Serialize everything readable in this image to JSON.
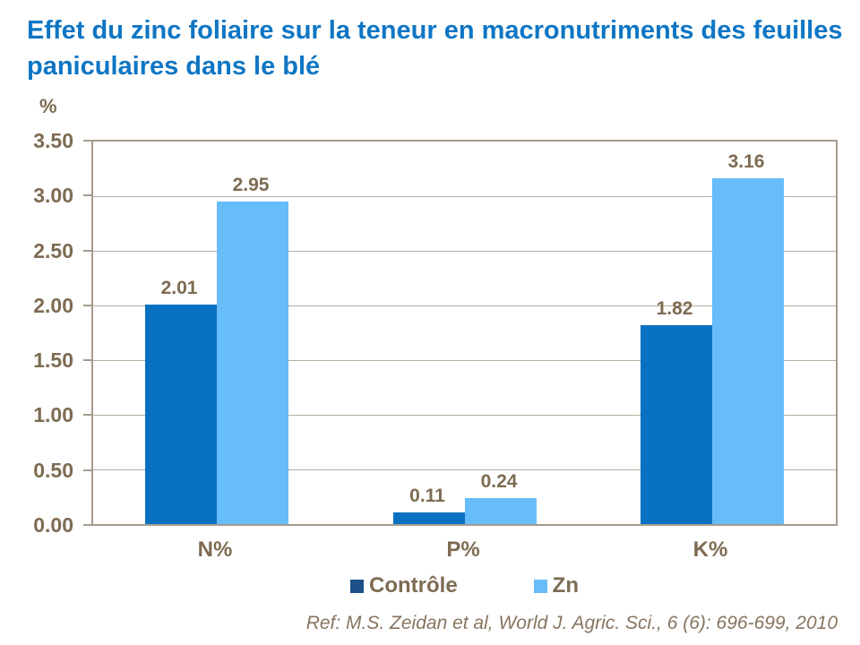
{
  "chart_data": {
    "type": "bar",
    "title": "Effet du zinc foliaire sur la teneur en macronutriments des feuilles paniculaires dans le blé",
    "ylabel": "%",
    "xlabel": "",
    "categories": [
      "N%",
      "P%",
      "K%"
    ],
    "series": [
      {
        "name": "Contrôle",
        "color": "#0971C1",
        "legend_color": "#1E5089",
        "values": [
          2.01,
          0.11,
          1.82
        ]
      },
      {
        "name": "Zn",
        "color": "#67BCFA",
        "legend_color": "#67BCFA",
        "values": [
          2.95,
          0.24,
          3.16
        ]
      }
    ],
    "data_labels": [
      [
        "2.01",
        "0.11",
        "1.82"
      ],
      [
        "2.95",
        "0.24",
        "3.16"
      ]
    ],
    "ylim": [
      0,
      3.5
    ],
    "ytick_step": 0.5,
    "yticks": [
      "0.00",
      "0.50",
      "1.00",
      "1.50",
      "2.00",
      "2.50",
      "3.00",
      "3.50"
    ],
    "grid": true,
    "legend_position": "bottom",
    "footnote": "Ref: M.S. Zeidan et al, World J. Agric. Sci., 6 (6): 696-699, 2010"
  },
  "colors": {
    "title": "#0E76C4",
    "axis_text": "#7D6B52",
    "plot_border": "#A59B8C",
    "gridline": "#B6AD9F",
    "footnote_text": "#877560",
    "background": "#FFFFFF"
  }
}
